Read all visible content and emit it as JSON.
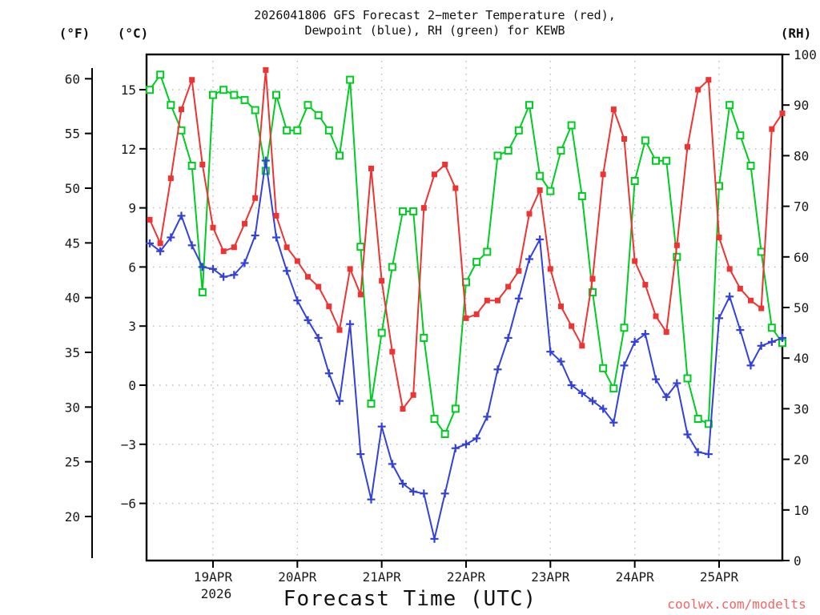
{
  "title": {
    "line1": "2026041806 GFS Forecast 2−meter Temperature (red),",
    "line2": "Dewpoint (blue), RH (green) for KEWB"
  },
  "axis_headers": {
    "fahrenheit": "(°F)",
    "celsius": "(°C)",
    "rh": "(RH)"
  },
  "xaxis_title": "Forecast Time (UTC)",
  "year_label": "2026",
  "watermark": "coolwx.com/modelts",
  "colors": {
    "temperature": "#ee3333",
    "dewpoint": "#3340d9",
    "rh": "#00cc22",
    "grid": "#b9b9b9",
    "frame": "#000000",
    "watermark": "#f26565"
  },
  "chart_data": {
    "type": "line",
    "station": "KEWB",
    "model_run": "2026041806",
    "x_tick_labels": [
      "19APR",
      "20APR",
      "21APR",
      "22APR",
      "23APR",
      "24APR",
      "25APR"
    ],
    "fahrenheit_ticks": [
      20,
      25,
      30,
      35,
      40,
      45,
      50,
      55,
      60
    ],
    "celsius_ticks": [
      -6,
      -3,
      0,
      3,
      6,
      9,
      12,
      15
    ],
    "rh_ticks": [
      0,
      10,
      20,
      30,
      40,
      50,
      60,
      70,
      80,
      90,
      100
    ],
    "c_axis_range": [
      -8.3,
      16.8
    ],
    "rh_axis_range": [
      0,
      100
    ],
    "x_range": [
      "18APR 06 UTC",
      "25APR 18 UTC"
    ],
    "step_hours": 3,
    "grid": "dotted, at whole-day verticals and 3C-interval horizontals",
    "times": [
      "18APR 06Z",
      "18APR 09Z",
      "18APR 12Z",
      "18APR 15Z",
      "18APR 18Z",
      "18APR 21Z",
      "19APR 00Z",
      "19APR 03Z",
      "19APR 06Z",
      "19APR 09Z",
      "19APR 12Z",
      "19APR 15Z",
      "19APR 18Z",
      "19APR 21Z",
      "20APR 00Z",
      "20APR 03Z",
      "20APR 06Z",
      "20APR 09Z",
      "20APR 12Z",
      "20APR 15Z",
      "20APR 18Z",
      "20APR 21Z",
      "21APR 00Z",
      "21APR 03Z",
      "21APR 06Z",
      "21APR 09Z",
      "21APR 12Z",
      "21APR 15Z",
      "21APR 18Z",
      "21APR 21Z",
      "22APR 00Z",
      "22APR 03Z",
      "22APR 06Z",
      "22APR 09Z",
      "22APR 12Z",
      "22APR 15Z",
      "22APR 18Z",
      "22APR 21Z",
      "23APR 00Z",
      "23APR 03Z",
      "23APR 06Z",
      "23APR 09Z",
      "23APR 12Z",
      "23APR 15Z",
      "23APR 18Z",
      "23APR 21Z",
      "24APR 00Z",
      "24APR 03Z",
      "24APR 06Z",
      "24APR 09Z",
      "24APR 12Z",
      "24APR 15Z",
      "24APR 18Z",
      "24APR 21Z",
      "25APR 00Z",
      "25APR 03Z",
      "25APR 06Z",
      "25APR 09Z",
      "25APR 12Z",
      "25APR 15Z",
      "25APR 18Z"
    ],
    "series": [
      {
        "name": "2-meter Temperature",
        "axis": "celsius",
        "unit": "°C",
        "color": "#ee3333",
        "marker": "filled-square",
        "values": [
          8.4,
          7.2,
          10.5,
          14.0,
          15.5,
          11.2,
          8.0,
          6.8,
          7.0,
          8.2,
          9.5,
          16.0,
          8.6,
          7.0,
          6.3,
          5.5,
          5.0,
          4.0,
          2.8,
          5.9,
          4.6,
          11.0,
          5.3,
          1.7,
          -1.2,
          -0.5,
          9.0,
          10.7,
          11.2,
          10.0,
          3.4,
          3.6,
          4.3,
          4.3,
          5.0,
          5.8,
          8.7,
          9.9,
          5.9,
          4.0,
          3.0,
          2.0,
          5.4,
          10.7,
          14.0,
          12.5,
          6.3,
          5.1,
          3.5,
          2.7,
          7.1,
          12.1,
          15.0,
          15.5,
          7.5,
          5.9,
          4.9,
          4.3,
          3.9,
          13.0,
          13.8
        ]
      },
      {
        "name": "Dewpoint",
        "axis": "celsius",
        "unit": "°C",
        "color": "#3340d9",
        "marker": "plus",
        "values": [
          7.2,
          6.8,
          7.5,
          8.6,
          7.1,
          6.0,
          5.9,
          5.5,
          5.6,
          6.2,
          7.6,
          11.4,
          7.5,
          5.8,
          4.3,
          3.3,
          2.4,
          0.6,
          -0.8,
          3.1,
          -3.5,
          -5.8,
          -2.1,
          -4.0,
          -5.0,
          -5.4,
          -5.5,
          -7.8,
          -5.5,
          -3.2,
          -3.0,
          -2.7,
          -1.6,
          0.8,
          2.4,
          4.4,
          6.4,
          7.4,
          1.7,
          1.2,
          0.0,
          -0.4,
          -0.8,
          -1.2,
          -1.9,
          1.0,
          2.2,
          2.6,
          0.3,
          -0.6,
          0.1,
          -2.5,
          -3.4,
          -3.5,
          3.4,
          4.5,
          2.8,
          1.0,
          2.0,
          2.2,
          2.4
        ]
      },
      {
        "name": "Relative Humidity",
        "axis": "rh",
        "unit": "%",
        "color": "#00cc22",
        "marker": "open-square",
        "values": [
          93,
          96,
          90,
          85,
          78,
          53,
          92,
          93,
          92,
          91,
          89,
          77,
          92,
          85,
          85,
          90,
          88,
          85,
          80,
          95,
          62,
          31,
          45,
          58,
          69,
          69,
          44,
          28,
          25,
          30,
          55,
          59,
          61,
          80,
          81,
          85,
          90,
          76,
          73,
          81,
          86,
          72,
          53,
          38,
          34,
          46,
          75,
          83,
          79,
          79,
          60,
          36,
          28,
          27,
          74,
          90,
          84,
          78,
          61,
          46,
          43
        ]
      }
    ]
  }
}
